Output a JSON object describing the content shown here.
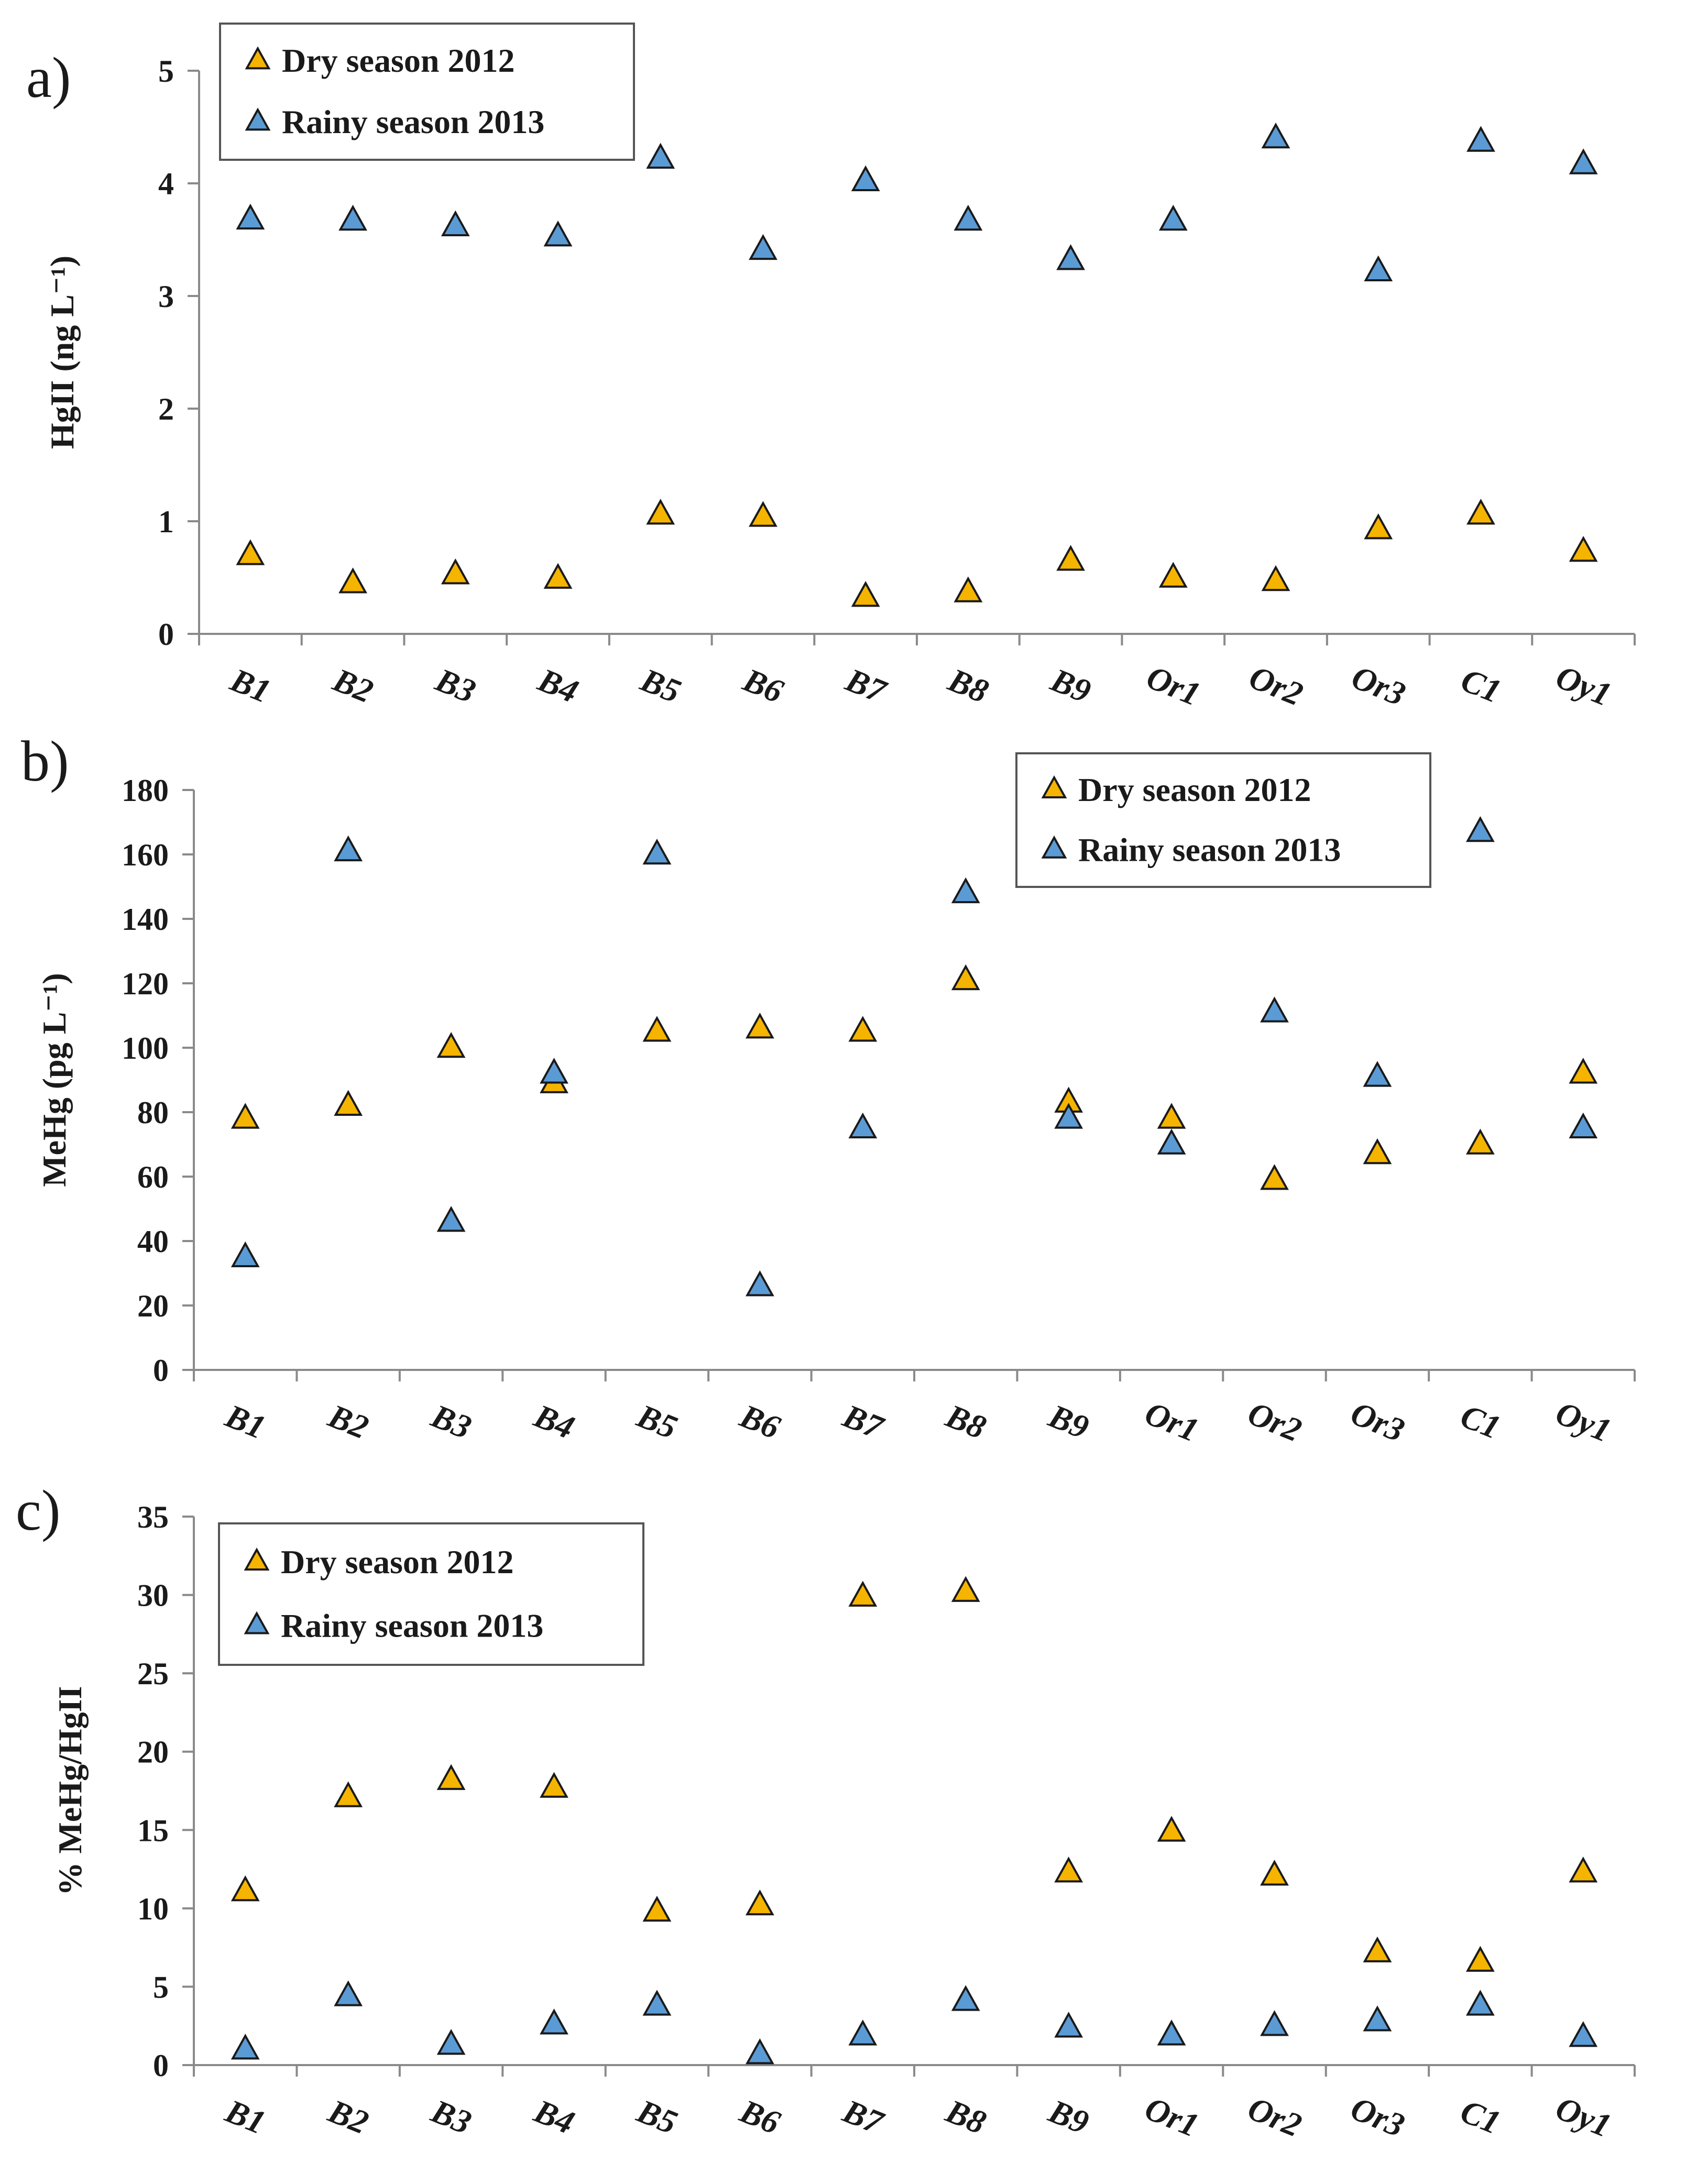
{
  "colors": {
    "dry": "#f5b400",
    "rainy": "#5b9bd5"
  },
  "chart_data": [
    {
      "type": "scatter",
      "panel_label": "a)",
      "ylabel": "HgII (ng L⁻¹)",
      "ylim": [
        0,
        5
      ],
      "yticks": [
        0,
        1,
        2,
        3,
        4,
        5
      ],
      "legend_position": "top-left",
      "categories": [
        "B1",
        "B2",
        "B3",
        "B4",
        "B5",
        "B6",
        "B7",
        "B8",
        "B9",
        "Or1",
        "Or2",
        "Or3",
        "C1",
        "Oy1"
      ],
      "series": [
        {
          "name": "Dry season 2012",
          "key": "dry",
          "values": [
            0.7,
            0.45,
            0.53,
            0.49,
            1.06,
            1.04,
            0.33,
            0.37,
            0.65,
            0.5,
            0.47,
            0.93,
            1.06,
            0.73
          ]
        },
        {
          "name": "Rainy season 2013",
          "key": "rainy",
          "values": [
            3.68,
            3.67,
            3.62,
            3.53,
            4.22,
            3.41,
            4.02,
            3.67,
            3.32,
            3.67,
            4.4,
            3.22,
            4.37,
            4.17
          ]
        }
      ]
    },
    {
      "type": "scatter",
      "panel_label": "b)",
      "ylabel": "MeHg (pg L⁻¹)",
      "ylim": [
        0,
        180
      ],
      "yticks": [
        0,
        20,
        40,
        60,
        80,
        100,
        120,
        140,
        160,
        180
      ],
      "legend_position": "top-right",
      "categories": [
        "B1",
        "B2",
        "B3",
        "B4",
        "B5",
        "B6",
        "B7",
        "B8",
        "B9",
        "Or1",
        "Or2",
        "Or3",
        "C1",
        "Oy1"
      ],
      "series": [
        {
          "name": "Dry season 2012",
          "key": "dry",
          "values": [
            78,
            82,
            100,
            89,
            105,
            106,
            105,
            121,
            83,
            78,
            59,
            67,
            70,
            92
          ]
        },
        {
          "name": "Rainy season 2013",
          "key": "rainy",
          "values": [
            35,
            161,
            46,
            92,
            160,
            26,
            75,
            148,
            78,
            70,
            111,
            91,
            167,
            75
          ]
        }
      ]
    },
    {
      "type": "scatter",
      "panel_label": "c)",
      "ylabel": "% MeHg/HgII",
      "ylim": [
        0,
        35
      ],
      "yticks": [
        0,
        5,
        10,
        15,
        20,
        25,
        30,
        35
      ],
      "legend_position": "top-left",
      "categories": [
        "B1",
        "B2",
        "B3",
        "B4",
        "B5",
        "B6",
        "B7",
        "B8",
        "B9",
        "Or1",
        "Or2",
        "Or3",
        "C1",
        "Oy1"
      ],
      "series": [
        {
          "name": "Dry season 2012",
          "key": "dry",
          "values": [
            11.1,
            17.1,
            18.2,
            17.7,
            9.8,
            10.2,
            29.9,
            30.2,
            12.3,
            14.9,
            12.1,
            7.2,
            6.6,
            12.3
          ]
        },
        {
          "name": "Rainy season 2013",
          "key": "rainy",
          "values": [
            1.0,
            4.4,
            1.3,
            2.6,
            3.8,
            0.7,
            1.9,
            4.1,
            2.4,
            1.9,
            2.5,
            2.8,
            3.8,
            1.8
          ]
        }
      ]
    }
  ]
}
